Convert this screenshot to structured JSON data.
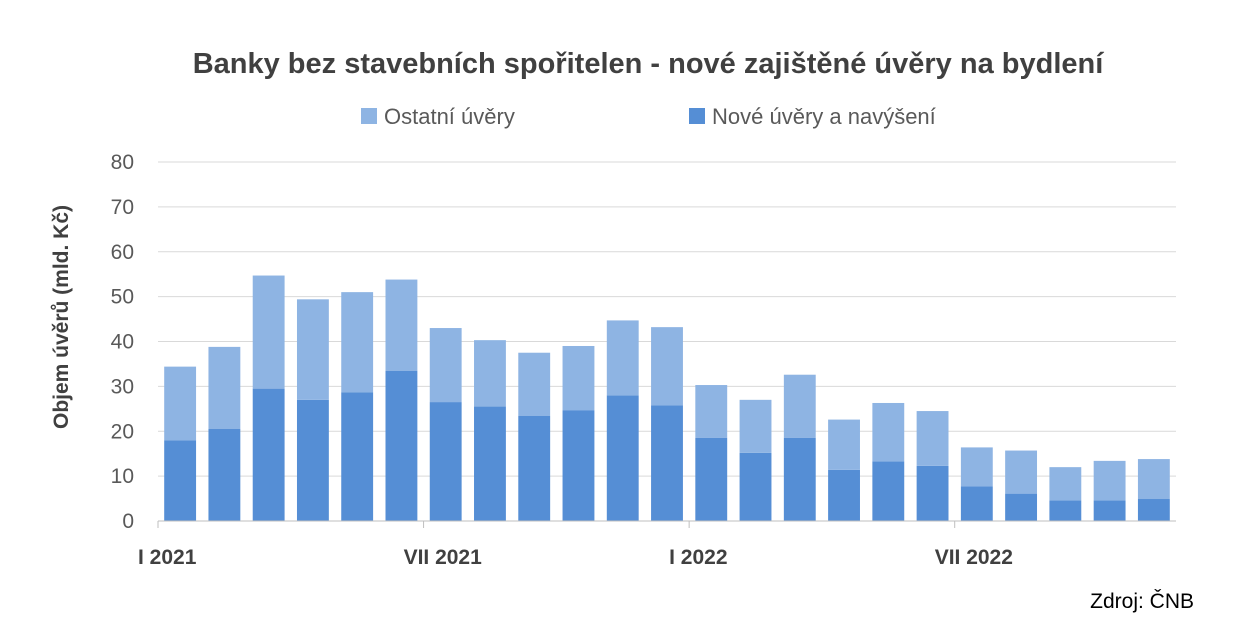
{
  "chart_data": {
    "type": "bar",
    "stacked": true,
    "title": "Banky bez stavebních spořitelen - nové zajištěné úvěry na bydlení",
    "ylabel": "Objem úvěrů (mld. Kč)",
    "xlabel": "",
    "ylim": [
      0,
      80
    ],
    "yticks": [
      0,
      10,
      20,
      30,
      40,
      50,
      60,
      70,
      80
    ],
    "grid": true,
    "legend_position": "top",
    "x_tick_labels": [
      {
        "index": 0,
        "label": "I 2021"
      },
      {
        "index": 6,
        "label": "VII 2021"
      },
      {
        "index": 12,
        "label": "I 2022"
      },
      {
        "index": 18,
        "label": "VII 2022"
      }
    ],
    "categories": [
      "2021-01",
      "2021-02",
      "2021-03",
      "2021-04",
      "2021-05",
      "2021-06",
      "2021-07",
      "2021-08",
      "2021-09",
      "2021-10",
      "2021-11",
      "2021-12",
      "2022-01",
      "2022-02",
      "2022-03",
      "2022-04",
      "2022-05",
      "2022-06",
      "2022-07",
      "2022-08",
      "2022-09",
      "2022-10",
      "2022-11"
    ],
    "series": [
      {
        "name": "Nové úvěry a navýšení",
        "color": "#558ed5",
        "values": [
          18,
          20.5,
          29.5,
          27,
          28.7,
          33.5,
          26.5,
          25.5,
          23.4,
          24.7,
          28,
          25.8,
          18.5,
          15.2,
          18.5,
          11.4,
          13.3,
          12.3,
          7.7,
          6.1,
          4.6,
          4.6,
          4.9
        ]
      },
      {
        "name": "Ostatní úvěry",
        "color": "#8eb4e3",
        "values": [
          16.4,
          18.3,
          25.2,
          22.4,
          22.3,
          20.3,
          16.5,
          14.8,
          14.1,
          14.3,
          16.7,
          17.4,
          11.8,
          11.8,
          14.1,
          11.2,
          13.0,
          12.2,
          8.7,
          9.6,
          7.4,
          8.8,
          8.9
        ]
      }
    ],
    "legend": [
      {
        "label": "Ostatní úvěry",
        "color": "#8eb4e3"
      },
      {
        "label": "Nové úvěry a navýšení",
        "color": "#558ed5"
      }
    ],
    "source": "Zdroj: ČNB"
  }
}
